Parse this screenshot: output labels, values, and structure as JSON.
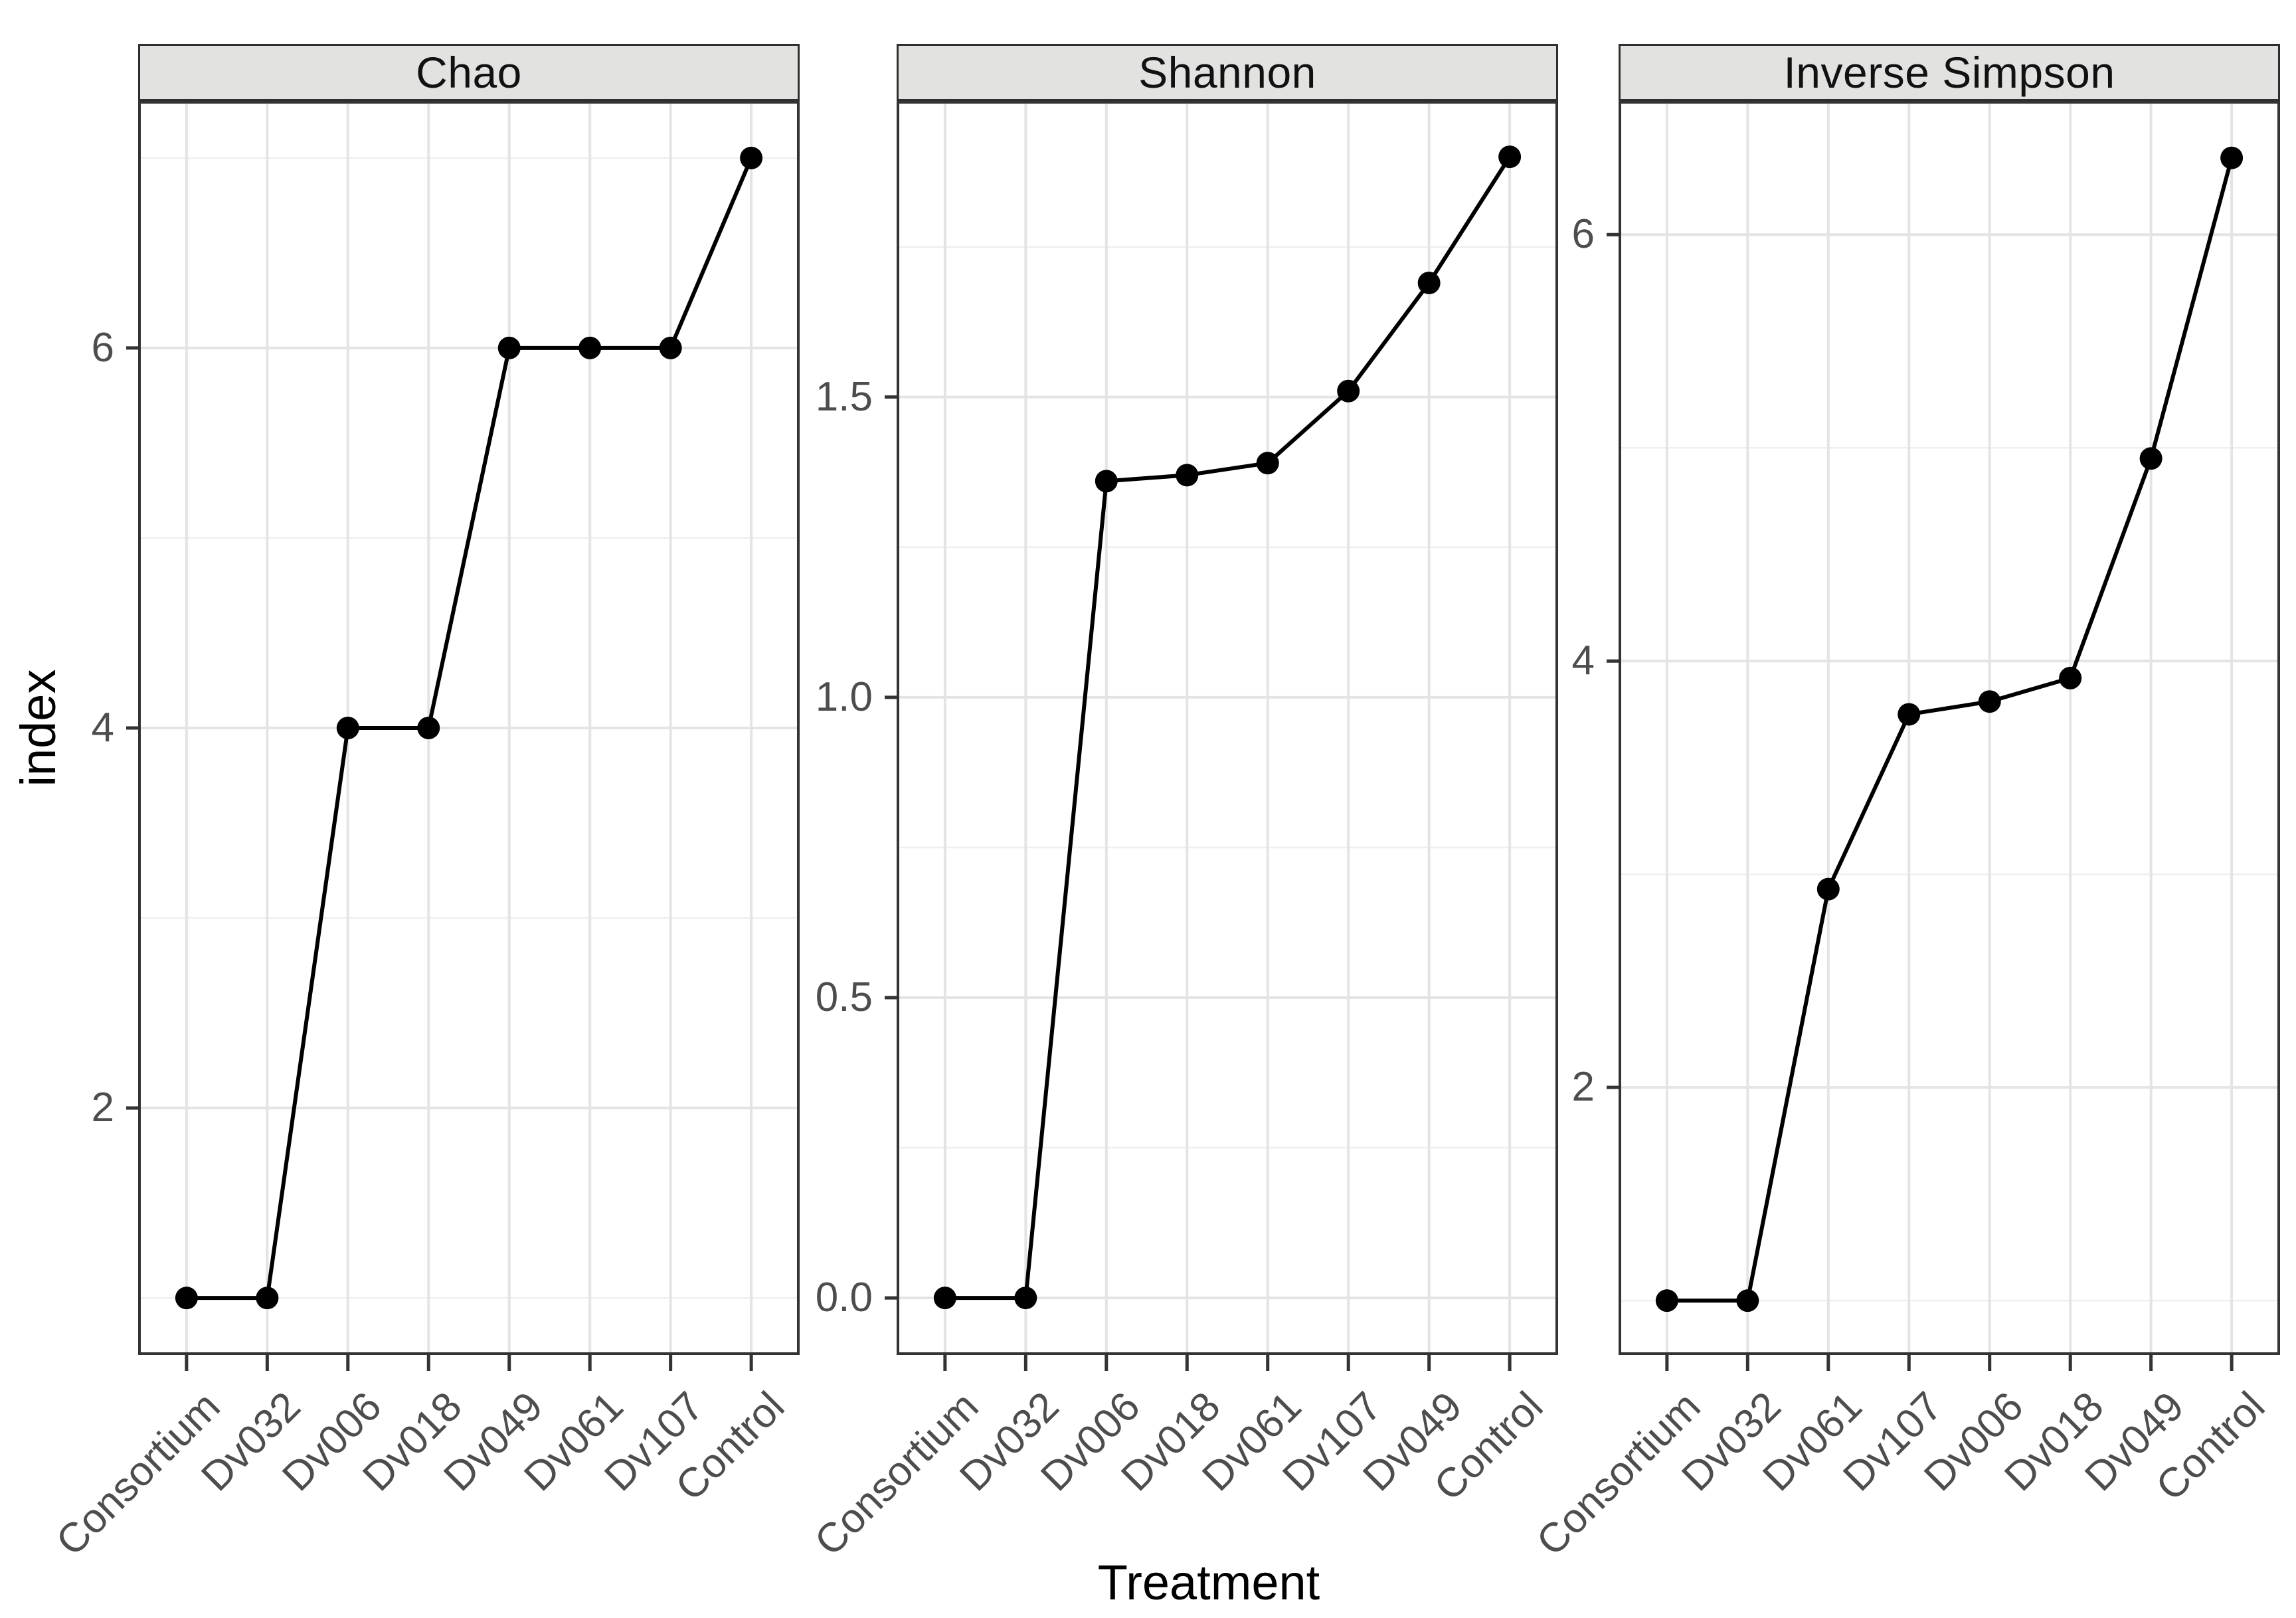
{
  "axes": {
    "x_title": "Treatment",
    "y_title": "index"
  },
  "colors": {
    "background": "#ffffff",
    "strip_background": "#E2E2E1",
    "panel_border": "#333333",
    "grid_major": "#E4E4E4",
    "grid_minor": "#EFEFEF",
    "line": "#000000",
    "point": "#000000",
    "tick_mark": "#333333",
    "tick_label": "#4D4D4D",
    "title_text": "#000000"
  },
  "chart_data": [
    {
      "type": "line",
      "title": "Chao",
      "categories": [
        "Consortium",
        "Dv032",
        "Dv006",
        "Dv018",
        "Dv049",
        "Dv061",
        "Dv107",
        "Control"
      ],
      "values": [
        1,
        1,
        4,
        4,
        6,
        6,
        6,
        7
      ],
      "ylim": [
        0.7,
        7.3
      ],
      "yticks": [
        2,
        4,
        6
      ],
      "ytick_labels": [
        "2",
        "4",
        "6"
      ],
      "yminor": [
        1,
        3,
        5,
        7
      ],
      "grid": true,
      "legend": "none"
    },
    {
      "type": "line",
      "title": "Shannon",
      "categories": [
        "Consortium",
        "Dv032",
        "Dv006",
        "Dv018",
        "Dv061",
        "Dv107",
        "Dv049",
        "Control"
      ],
      "values": [
        0,
        0,
        1.36,
        1.37,
        1.39,
        1.51,
        1.69,
        1.9
      ],
      "ylim": [
        -0.095,
        1.993
      ],
      "yticks": [
        0,
        0.5,
        1,
        1.5
      ],
      "ytick_labels": [
        "0.0",
        "0.5",
        "1.0",
        "1.5"
      ],
      "yminor": [
        0.25,
        0.75,
        1.25,
        1.75
      ],
      "grid": true,
      "legend": "none"
    },
    {
      "type": "line",
      "title": "Inverse Simpson",
      "categories": [
        "Consortium",
        "Dv032",
        "Dv061",
        "Dv107",
        "Dv006",
        "Dv018",
        "Dv049",
        "Control"
      ],
      "values": [
        1,
        1,
        2.93,
        3.75,
        3.81,
        3.92,
        4.95,
        6.36
      ],
      "ylim": [
        0.745,
        6.627
      ],
      "yticks": [
        2,
        4,
        6
      ],
      "ytick_labels": [
        "2",
        "4",
        "6"
      ],
      "yminor": [
        1,
        3,
        5
      ],
      "grid": true,
      "legend": "none"
    }
  ]
}
